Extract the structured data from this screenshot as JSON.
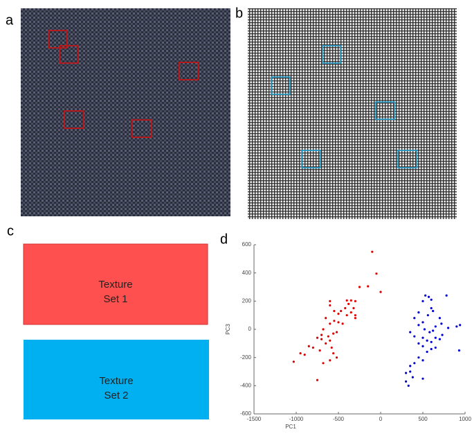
{
  "panels": {
    "a": "a",
    "b": "b",
    "c": "c",
    "d": "d"
  },
  "boxes": [
    {
      "lines": [
        "Texture",
        "Set 1"
      ]
    },
    {
      "lines": [
        "Texture",
        "Set 2"
      ]
    }
  ],
  "chart_data": {
    "type": "scatter",
    "xlabel": "PC1",
    "ylabel": "PC3",
    "xlim": [
      -1500,
      1000
    ],
    "ylim": [
      -600,
      600
    ],
    "xticks": [
      -1500,
      -1000,
      -500,
      0,
      500,
      1000
    ],
    "yticks": [
      -600,
      -400,
      -200,
      0,
      200,
      400,
      600
    ],
    "series": [
      {
        "color": "#e00000",
        "x": [
          -100,
          -50,
          0,
          -150,
          -250,
          -350,
          -300,
          -400,
          -380,
          -320,
          -350,
          -300,
          -420,
          -470,
          -500,
          -550,
          -600,
          -600,
          -650,
          -550,
          -500,
          -450,
          -600,
          -680,
          -700,
          -620,
          -560,
          -520,
          -600,
          -650,
          -700,
          -750,
          -800,
          -850,
          -900,
          -950,
          -1030,
          -580,
          -560,
          -520,
          -600,
          -680,
          -750,
          -720,
          -400,
          -300
        ],
        "values": [
          550,
          395,
          265,
          305,
          300,
          205,
          200,
          205,
          180,
          150,
          120,
          100,
          150,
          130,
          110,
          130,
          170,
          200,
          80,
          60,
          50,
          40,
          40,
          0,
          -40,
          -50,
          -30,
          -20,
          -80,
          -100,
          -70,
          -60,
          -130,
          -120,
          -180,
          -170,
          -230,
          -130,
          -170,
          -200,
          -220,
          -240,
          -360,
          -150,
          100,
          80
        ]
      },
      {
        "color": "#0000d0",
        "x": [
          530,
          570,
          600,
          780,
          500,
          450,
          600,
          620,
          560,
          400,
          500,
          450,
          700,
          720,
          650,
          800,
          900,
          940,
          350,
          400,
          500,
          550,
          600,
          650,
          700,
          730,
          450,
          500,
          600,
          650,
          550,
          450,
          500,
          400,
          350,
          300,
          350,
          380,
          300,
          330,
          500,
          930,
          580,
          620,
          520
        ],
        "values": [
          240,
          230,
          210,
          240,
          200,
          120,
          150,
          130,
          100,
          80,
          50,
          30,
          80,
          40,
          20,
          10,
          20,
          30,
          -20,
          -50,
          -60,
          -80,
          -90,
          -60,
          -70,
          -40,
          -100,
          -120,
          -140,
          -130,
          -160,
          -200,
          -220,
          -240,
          -260,
          -310,
          -300,
          -340,
          -370,
          -400,
          -350,
          -150,
          -20,
          -10,
          0
        ]
      }
    ]
  }
}
